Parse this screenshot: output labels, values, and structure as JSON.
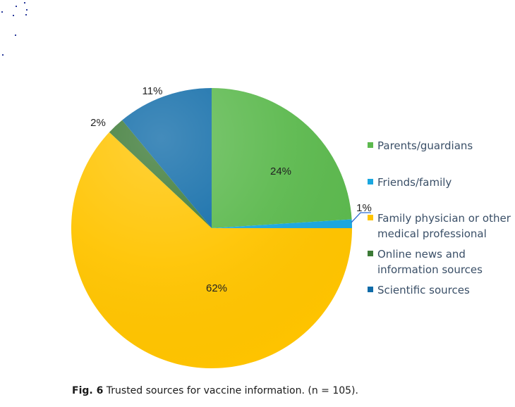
{
  "chart_data": {
    "type": "pie",
    "title": "",
    "slices": [
      {
        "label": "Parents/guardians",
        "value": 24,
        "display": "24%",
        "color": "#5cb94e"
      },
      {
        "label": "Friends/family",
        "value": 1,
        "display": "1%",
        "color": "#1aa7e0"
      },
      {
        "label": "Family physician or other medical professional",
        "value": 62,
        "display": "62%",
        "color": "#ffc400"
      },
      {
        "label": "Online news and information sources",
        "value": 2,
        "display": "2%",
        "color": "#3c7a36"
      },
      {
        "label": "Scientific sources",
        "value": 11,
        "display": "11%",
        "color": "#0f6ba8"
      }
    ],
    "legend": {
      "position": "right",
      "items": [
        {
          "lines": [
            "Parents/guardians"
          ],
          "color": "#5cb94e"
        },
        {
          "lines": [
            "Friends/family"
          ],
          "color": "#1aa7e0"
        },
        {
          "lines": [
            "Family physician or other",
            "medical professional"
          ],
          "color": "#ffc400"
        },
        {
          "lines": [
            "Online news and",
            "information sources"
          ],
          "color": "#3c7a36"
        },
        {
          "lines": [
            "Scientific sources"
          ],
          "color": "#0f6ba8"
        }
      ]
    }
  },
  "caption": {
    "fig_label": "Fig. 6",
    "text": " Trusted sources for vaccine information. (n = 105)."
  }
}
